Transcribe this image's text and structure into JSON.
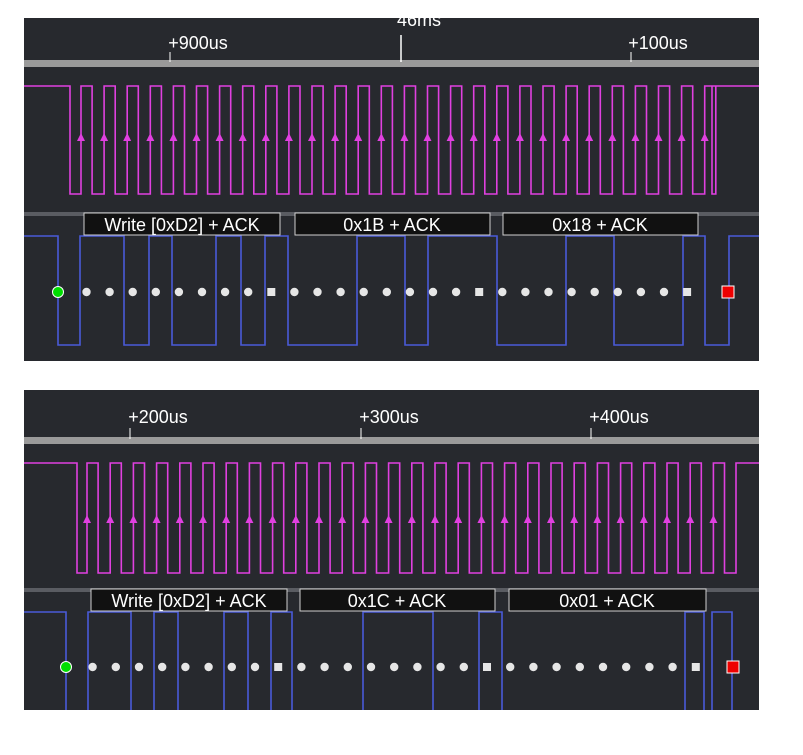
{
  "colors": {
    "background": "#27292e",
    "ruler": "#9a9a9a",
    "scl": "#e040e0",
    "sda": "#4a5ad8",
    "bit_dot": "#e6e6e6",
    "start_marker": "#00dd00",
    "stop_marker": "#ee0000",
    "label_box": "#111111",
    "label_border": "#d0d0d0"
  },
  "panels": [
    {
      "time_marker": "46ms",
      "ticks": [
        "+900us",
        "+100us"
      ],
      "frames": [
        "Write [0xD2] + ACK",
        "0x1B + ACK",
        "0x18 + ACK"
      ]
    },
    {
      "time_marker": "",
      "ticks": [
        "+200us",
        "+300us",
        "+400us"
      ],
      "frames": [
        "Write [0xD2] + ACK",
        "0x1C + ACK",
        "0x01 + ACK"
      ]
    }
  ]
}
